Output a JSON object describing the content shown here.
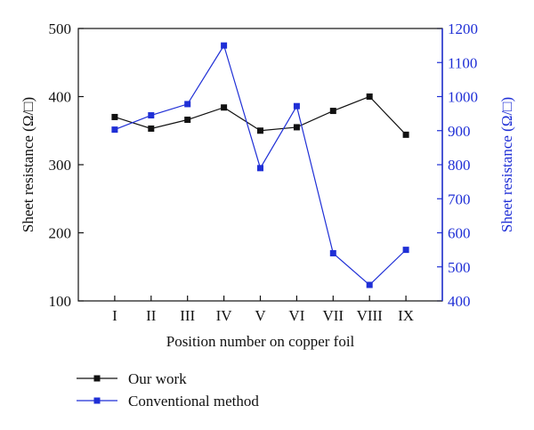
{
  "chart_data": {
    "type": "line",
    "title": "",
    "xlabel": "Position number on copper foil",
    "categories": [
      "I",
      "II",
      "III",
      "IV",
      "V",
      "VI",
      "VII",
      "VIII",
      "IX"
    ],
    "y_left": {
      "label": "Sheet resistance (Ω/□)",
      "lim": [
        100,
        500
      ],
      "ticks": [
        100,
        200,
        300,
        400,
        500
      ],
      "color": "#111111"
    },
    "y_right": {
      "label": "Sheet resistance (Ω/□)",
      "lim": [
        400,
        1200
      ],
      "ticks": [
        400,
        500,
        600,
        700,
        800,
        900,
        1000,
        1100,
        1200
      ],
      "color": "#1f2fd6"
    },
    "series": [
      {
        "name": "Our work",
        "axis": "left",
        "color": "#111111",
        "values": [
          370,
          353,
          366,
          384,
          350,
          355,
          379,
          400,
          344
        ]
      },
      {
        "name": "Conventional method",
        "axis": "right",
        "color": "#1f2fd6",
        "values": [
          903,
          945,
          978,
          1150,
          790,
          972,
          540,
          447,
          550
        ]
      }
    ],
    "legend_position": "bottom-left",
    "grid": false
  }
}
